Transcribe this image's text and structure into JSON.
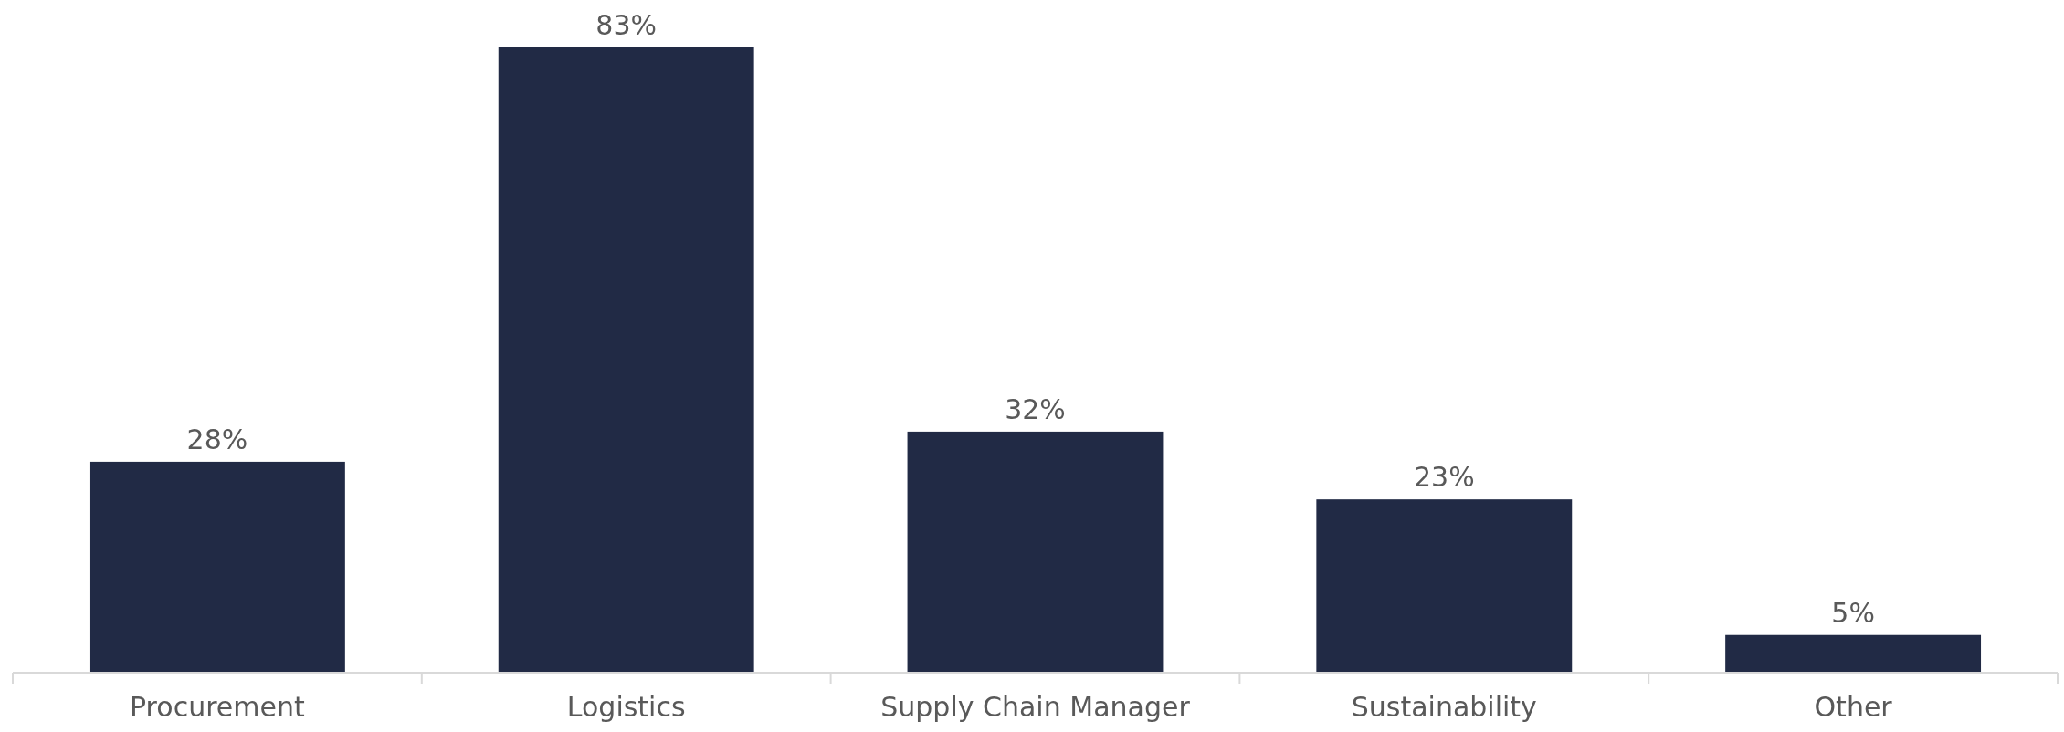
{
  "chart_data": {
    "type": "bar",
    "categories": [
      "Procurement",
      "Logistics",
      "Supply Chain Manager",
      "Sustainability",
      "Other"
    ],
    "values": [
      28,
      83,
      32,
      23,
      5
    ],
    "value_labels": [
      "28%",
      "83%",
      "32%",
      "23%",
      "5%"
    ],
    "color": "#212a45"
  }
}
